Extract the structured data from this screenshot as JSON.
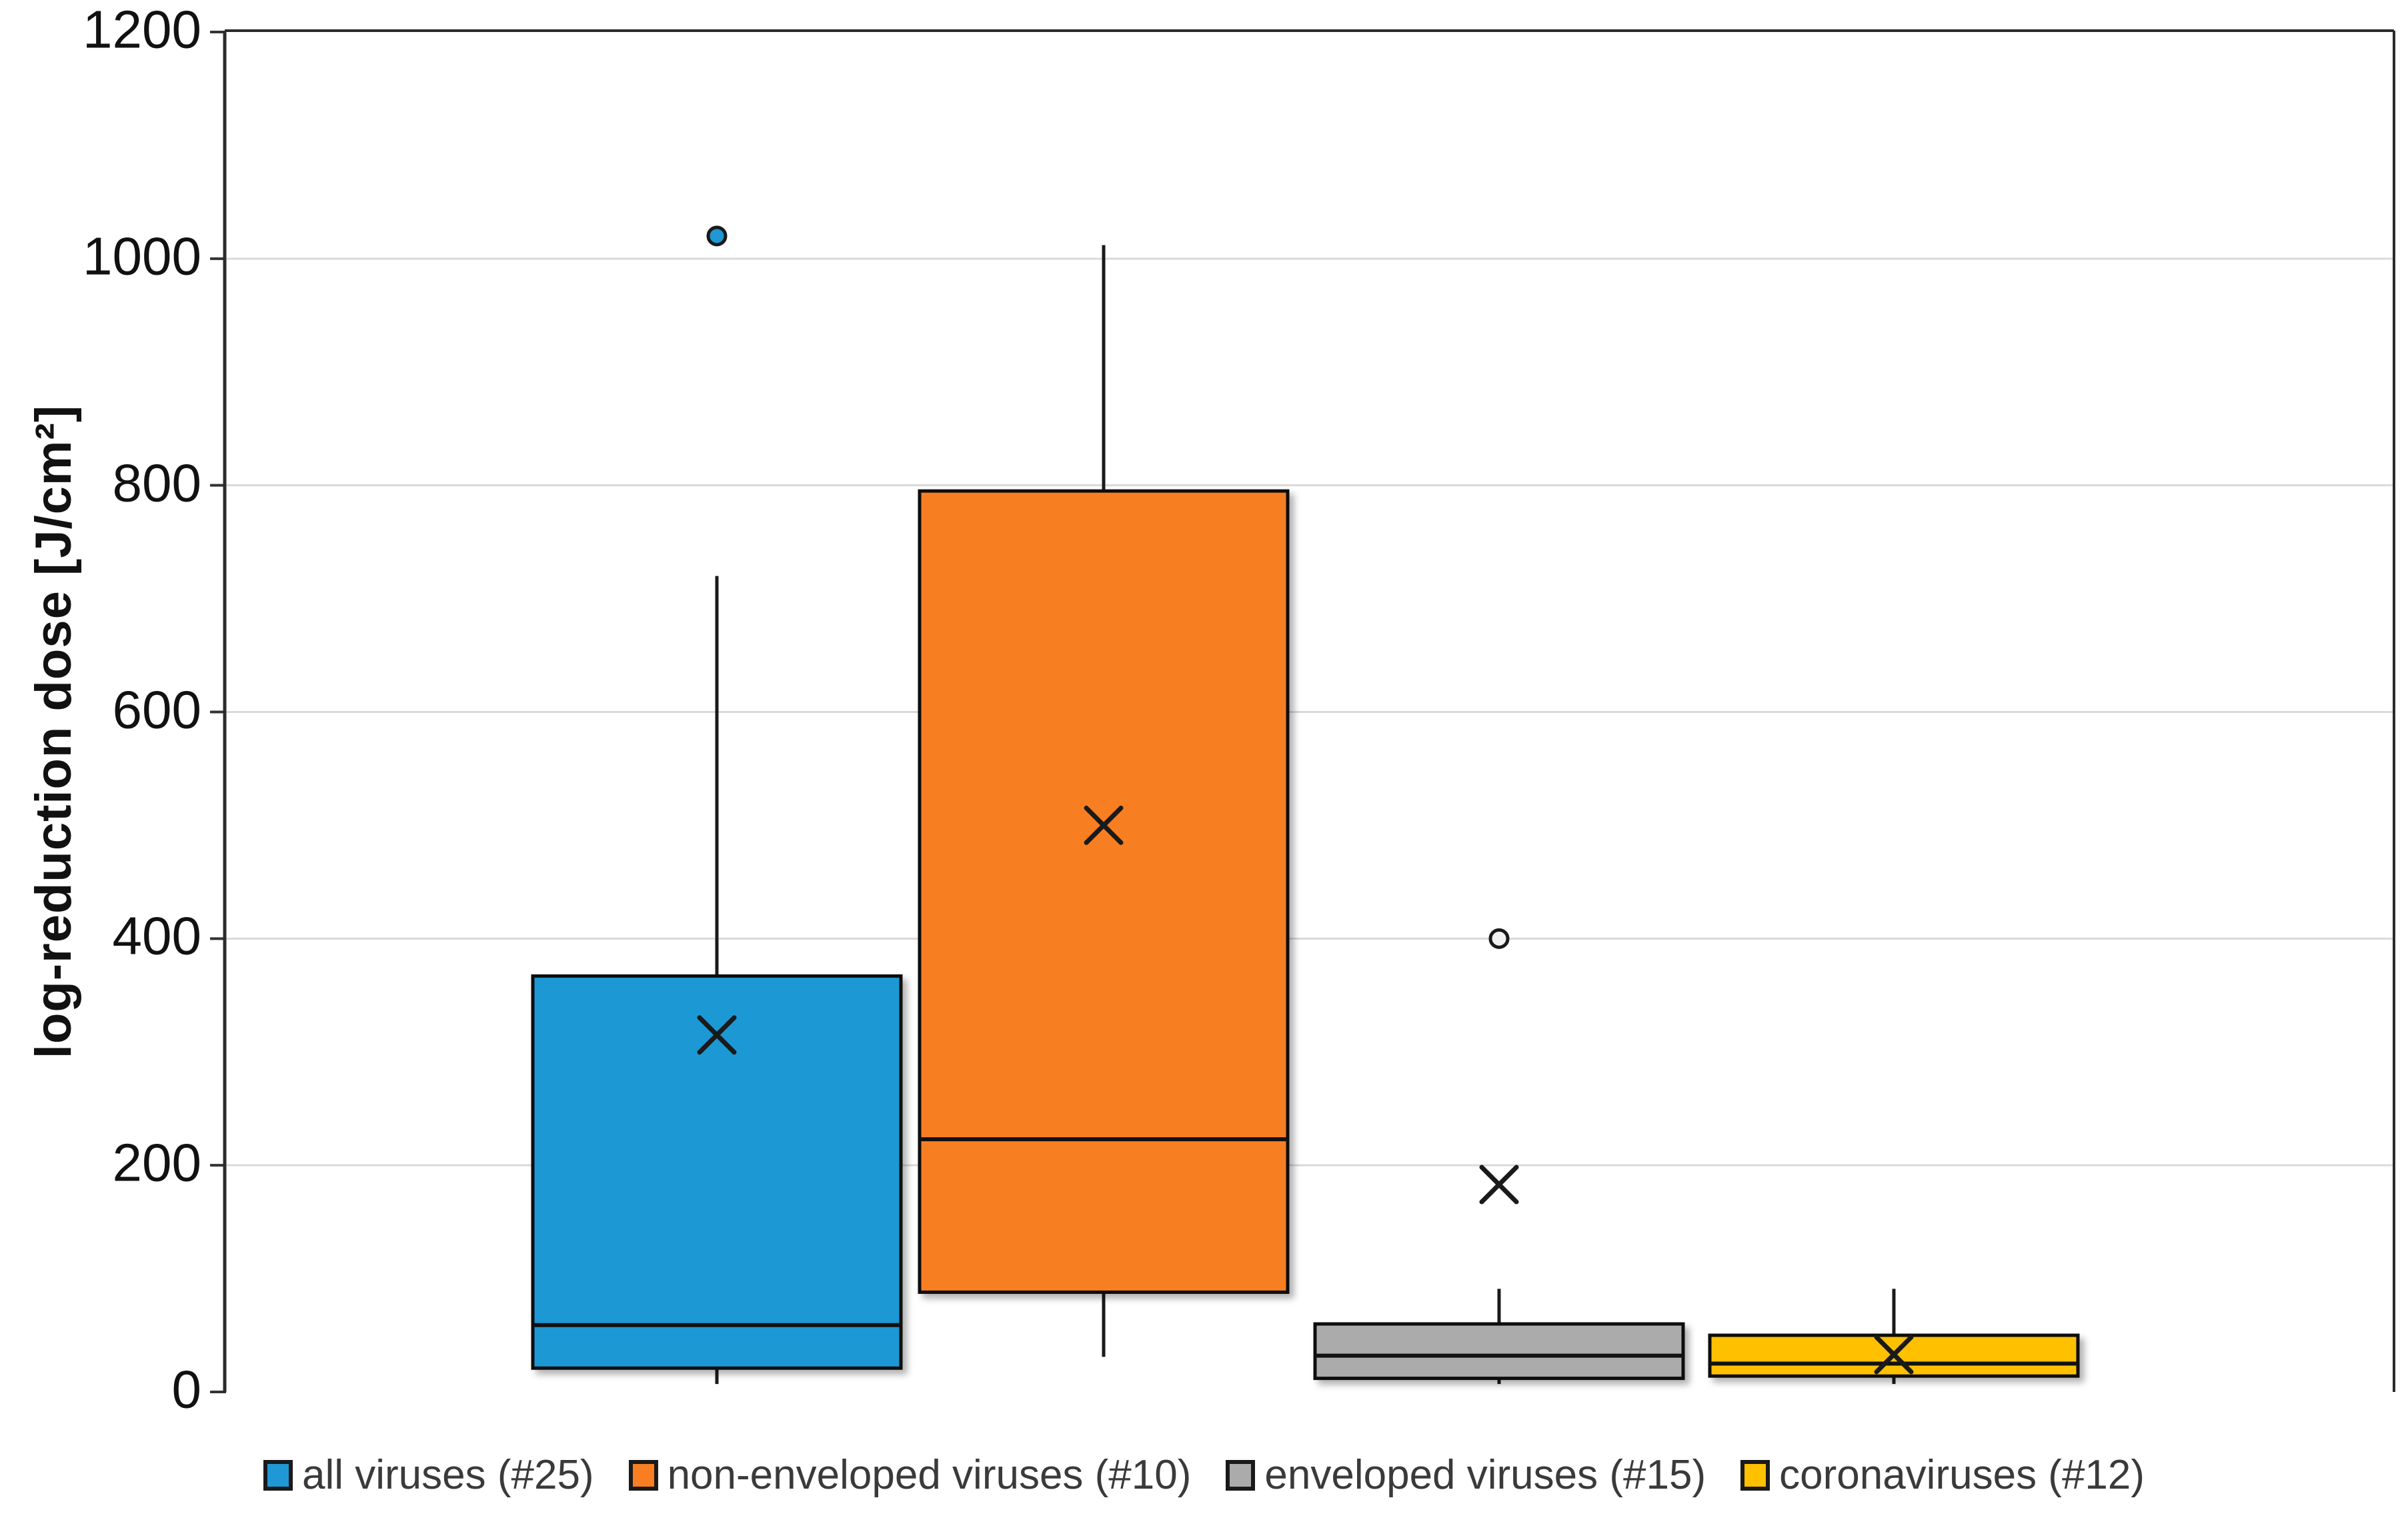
{
  "chart_data": {
    "type": "boxplot",
    "title": "",
    "ylabel": "log-reduction dose [J/cm²]",
    "xlabel": "",
    "ylim": [
      0,
      1200
    ],
    "yticks": [
      0,
      200,
      400,
      600,
      800,
      1000,
      1200
    ],
    "grid": true,
    "legend_position": "bottom",
    "series": [
      {
        "name": "all viruses (#25)",
        "color": "#1F98D5",
        "whisker_low": 7,
        "q1": 21,
        "median": 59,
        "q3": 367,
        "whisker_high": 720,
        "mean": 315,
        "outliers": [
          1020
        ]
      },
      {
        "name": "non-enveloped viruses (#10)",
        "color": "#F87E21",
        "whisker_low": 31,
        "q1": 88,
        "median": 223,
        "q3": 795,
        "whisker_high": 1012,
        "mean": 500,
        "outliers": []
      },
      {
        "name": "enveloped viruses (#15)",
        "color": "#ABABAB",
        "whisker_low": 7,
        "q1": 12,
        "median": 32,
        "q3": 60,
        "whisker_high": 91,
        "mean": 183,
        "outliers": [
          400
        ]
      },
      {
        "name": "coronaviruses (#12)",
        "color": "#FFC000",
        "whisker_low": 7,
        "q1": 14,
        "median": 25,
        "q3": 50,
        "whisker_high": 91,
        "mean": 33,
        "outliers": []
      }
    ]
  }
}
